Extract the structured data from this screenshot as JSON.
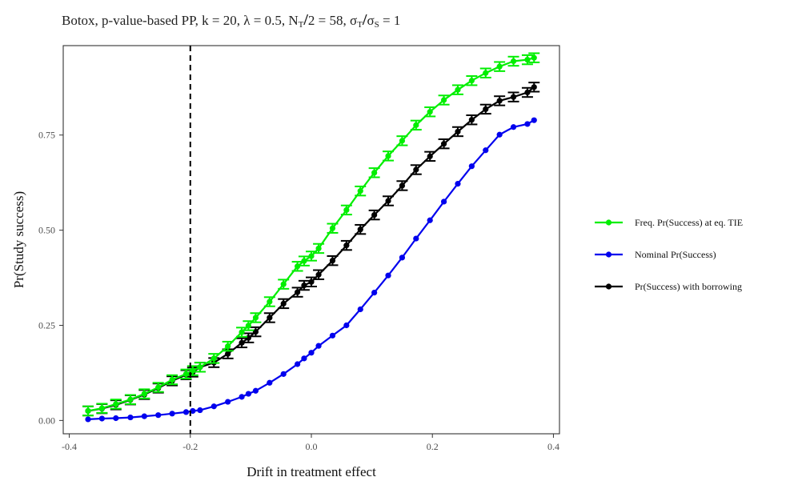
{
  "chart_data": {
    "type": "line",
    "title": {
      "prefix": "Botox, p-value-based PP, k = 20, λ = 0.5, N",
      "n_sub": "T",
      "n_rest": "2 =  58, σ",
      "sig_t_sub": "T",
      "sig_s": "σ",
      "sig_s_sub": "S",
      "sig_rest": " = 1"
    },
    "xlabel": "Drift in treatment effect",
    "ylabel": "Pr(Study success)",
    "xlim": [
      -0.41,
      0.41
    ],
    "ylim": [
      -0.035,
      0.985
    ],
    "x_ticks": [
      -0.4,
      -0.2,
      0.0,
      0.2,
      0.4
    ],
    "x_tick_labels": [
      "-0.4",
      "-0.2",
      "0.0",
      "0.2",
      "0.4"
    ],
    "y_ticks": [
      0.0,
      0.25,
      0.5,
      0.75
    ],
    "y_tick_labels": [
      "0.00",
      "0.25",
      "0.50",
      "0.75"
    ],
    "vline": {
      "x": -0.2,
      "style": "dashed"
    },
    "x": [
      -0.369,
      -0.346,
      -0.323,
      -0.299,
      -0.276,
      -0.253,
      -0.23,
      -0.207,
      -0.196,
      -0.184,
      -0.161,
      -0.138,
      -0.115,
      -0.104,
      -0.092,
      -0.069,
      -0.046,
      -0.023,
      -0.012,
      0.0,
      0.012,
      0.035,
      0.058,
      0.081,
      0.104,
      0.127,
      0.15,
      0.173,
      0.196,
      0.219,
      0.242,
      0.265,
      0.288,
      0.311,
      0.334,
      0.357,
      0.368
    ],
    "series": [
      {
        "name": "Freq. Pr(Success) at eq. TIE",
        "color": "#00ee00",
        "values": [
          0.025,
          0.032,
          0.043,
          0.055,
          0.07,
          0.087,
          0.107,
          0.122,
          0.131,
          0.14,
          0.163,
          0.195,
          0.232,
          0.249,
          0.27,
          0.312,
          0.358,
          0.405,
          0.419,
          0.432,
          0.452,
          0.505,
          0.553,
          0.603,
          0.651,
          0.695,
          0.735,
          0.776,
          0.811,
          0.842,
          0.869,
          0.893,
          0.913,
          0.93,
          0.944,
          0.948,
          0.953
        ],
        "err": 0.012
      },
      {
        "name": "Nominal Pr(Success)",
        "color": "#0000ee",
        "values": [
          0.003,
          0.005,
          0.006,
          0.008,
          0.011,
          0.014,
          0.018,
          0.022,
          0.025,
          0.027,
          0.037,
          0.049,
          0.062,
          0.07,
          0.078,
          0.099,
          0.122,
          0.148,
          0.163,
          0.178,
          0.196,
          0.223,
          0.25,
          0.292,
          0.336,
          0.381,
          0.428,
          0.478,
          0.526,
          0.575,
          0.622,
          0.668,
          0.71,
          0.751,
          0.771,
          0.779,
          0.789
        ],
        "err": 0
      },
      {
        "name": "Pr(Success) with borrowing",
        "color": "#000000",
        "values": [
          0.025,
          0.031,
          0.041,
          0.054,
          0.068,
          0.085,
          0.104,
          0.12,
          0.127,
          0.14,
          0.152,
          0.175,
          0.204,
          0.217,
          0.233,
          0.27,
          0.307,
          0.337,
          0.355,
          0.364,
          0.383,
          0.42,
          0.46,
          0.502,
          0.54,
          0.577,
          0.617,
          0.659,
          0.694,
          0.727,
          0.759,
          0.79,
          0.818,
          0.84,
          0.85,
          0.862,
          0.876
        ],
        "err": 0.012
      }
    ],
    "legend_order": [
      0,
      1,
      2
    ],
    "legend_position": "right"
  }
}
